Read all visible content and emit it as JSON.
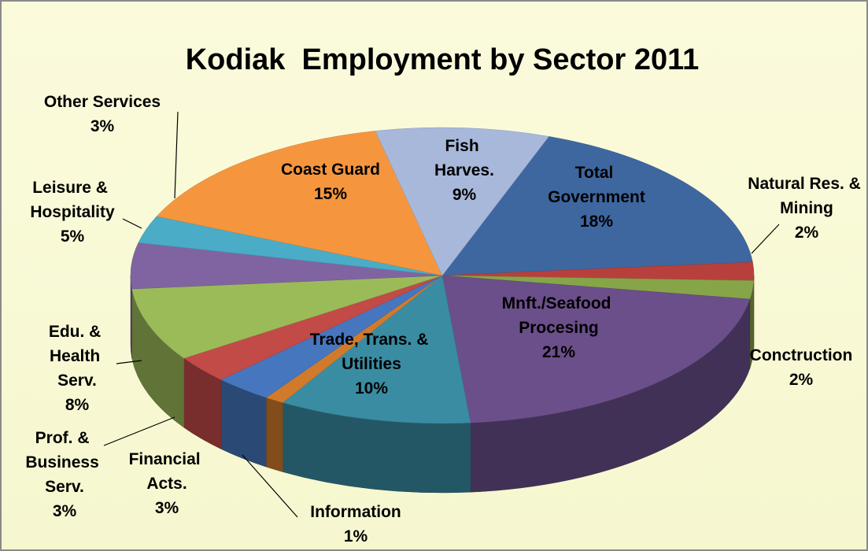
{
  "chart_data": {
    "type": "pie",
    "title": "Kodiak  Employment by Sector 2011",
    "categories": [
      "Total Government",
      "Natural Res. & Mining",
      "Conctruction",
      "Mnft./Seafood Procesing",
      "Trade, Trans. & Utilities",
      "Information",
      "Financial Acts.",
      "Prof. & Business Serv.",
      "Edu. & Health Serv.",
      "Leisure & Hospitality",
      "Other Services",
      "Coast Guard",
      "Fish Harves."
    ],
    "values": [
      18,
      2,
      2,
      21,
      10,
      1,
      3,
      3,
      8,
      5,
      3,
      15,
      9
    ],
    "value_labels": [
      "18%",
      "2%",
      "2%",
      "21%",
      "10%",
      "1%",
      "3%",
      "3%",
      "8%",
      "5%",
      "3%",
      "15%",
      "9%"
    ],
    "colors": [
      "#3e67a0",
      "#b8403c",
      "#86a548",
      "#6b4f8a",
      "#3a8ca3",
      "#d27a2c",
      "#4676bd",
      "#c24a47",
      "#9bbb59",
      "#8064a2",
      "#4aacc6",
      "#f5963f",
      "#a7b8da"
    ]
  }
}
